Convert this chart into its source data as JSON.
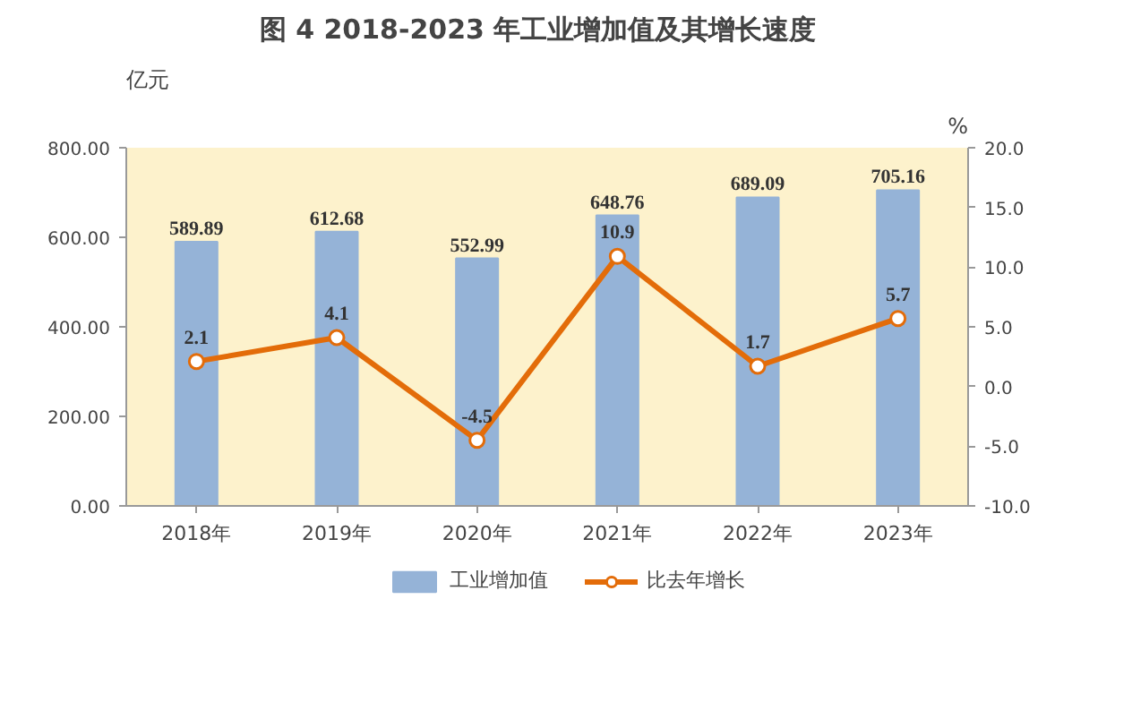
{
  "chart_data": {
    "type": "bar",
    "title": "图 4   2018-2023 年工业增加值及其增长速度",
    "ylabel": "亿元",
    "y2label": "%",
    "categories": [
      "2018年",
      "2019年",
      "2020年",
      "2021年",
      "2022年",
      "2023年"
    ],
    "series": [
      {
        "name": "工业增加值",
        "color": "#95b3d7",
        "values": [
          589.89,
          612.68,
          552.99,
          648.76,
          689.09,
          705.16
        ]
      },
      {
        "name": "比去年增长",
        "type": "line",
        "axis": "y2",
        "color": "#e36c09",
        "values": [
          2.1,
          4.1,
          -4.5,
          10.9,
          1.7,
          5.7
        ]
      }
    ],
    "ylim": [
      0,
      800
    ],
    "yticks": [
      {
        "value": 0,
        "label": "0.00"
      },
      {
        "value": 200,
        "label": "200.00"
      },
      {
        "value": 400,
        "label": "400.00"
      },
      {
        "value": 600,
        "label": "600.00"
      },
      {
        "value": 800,
        "label": "800.00"
      }
    ],
    "y2lim": [
      -10,
      20
    ],
    "y2ticks": [
      {
        "value": -10,
        "label": "-10.0"
      },
      {
        "value": -5,
        "label": "-5.0"
      },
      {
        "value": 0,
        "label": "0.0"
      },
      {
        "value": 5,
        "label": "5.0"
      },
      {
        "value": 10,
        "label": "10.0"
      },
      {
        "value": 15,
        "label": "15.0"
      },
      {
        "value": 20,
        "label": "20.0"
      }
    ],
    "data_labels": true,
    "marker": "circle",
    "line_style": "solid",
    "grid": false,
    "legend": "bottom"
  }
}
